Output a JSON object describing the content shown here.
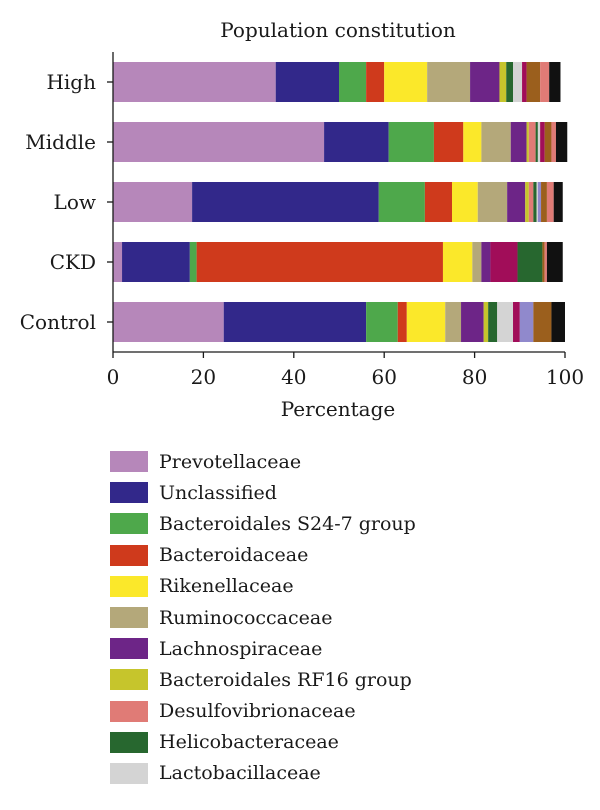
{
  "chart_data": {
    "type": "bar",
    "orientation": "horizontal",
    "stacked": true,
    "title": "Population constitution",
    "xlabel": "Percentage",
    "ylabel": "",
    "xlim": [
      0,
      100
    ],
    "xticks": [
      0,
      20,
      40,
      60,
      80,
      100
    ],
    "grid": false,
    "legend_position": "bottom",
    "categories": [
      "High",
      "Middle",
      "Low",
      "CKD",
      "Control"
    ],
    "series": [
      {
        "name": "Prevotellaceae",
        "color": "#b687ba",
        "values": [
          36,
          46.7,
          17.5,
          2,
          24.5
        ]
      },
      {
        "name": "Unclassified",
        "color": "#32288a",
        "values": [
          14,
          14.3,
          41.3,
          15,
          31.5
        ]
      },
      {
        "name": "Bacteroidales S24-7 group",
        "color": "#4ea84b",
        "values": [
          6,
          10,
          10.2,
          1.5,
          7
        ]
      },
      {
        "name": "Bacteroidaceae",
        "color": "#cf3a1c",
        "values": [
          4,
          6.5,
          6,
          54.5,
          2
        ]
      },
      {
        "name": "Rikenellaceae",
        "color": "#fbe82a",
        "values": [
          9.5,
          4,
          5.7,
          6.5,
          8.5
        ]
      },
      {
        "name": "Ruminococcaceae",
        "color": "#b4a87a",
        "values": [
          9.5,
          6.5,
          6.5,
          2,
          3.5
        ]
      },
      {
        "name": "Lachnospiraceae",
        "color": "#6d2587",
        "values": [
          6.5,
          3.5,
          4,
          2,
          5
        ]
      },
      {
        "name": "Bacteroidales RF16 group",
        "color": "#c6c52c",
        "values": [
          1.5,
          0.5,
          0.8,
          0,
          1
        ]
      },
      {
        "name": "Desulfovibrionaceae",
        "color": "#e07b76",
        "values": [
          0,
          1.5,
          1,
          0,
          0
        ]
      },
      {
        "name": "Helicobacteraceae",
        "color": "#27672f",
        "values": [
          1.5,
          0.5,
          0.7,
          0,
          2
        ]
      },
      {
        "name": "Lactobacillaceae",
        "color": "#d4d4d4",
        "values": [
          2,
          0.5,
          0.3,
          0,
          3.5
        ]
      }
    ],
    "other_segments": [
      [
        {
          "color": "#a10d59",
          "value": 1
        },
        {
          "color": "#9b5f1d",
          "value": 3
        },
        {
          "color": "#e07b76",
          "value": 2
        },
        {
          "color": "#111111",
          "value": 2.5
        }
      ],
      [
        {
          "color": "#a10d59",
          "value": 1
        },
        {
          "color": "#9b5f1d",
          "value": 1.5
        },
        {
          "color": "#e07b76",
          "value": 1
        },
        {
          "color": "#111111",
          "value": 2.5
        }
      ],
      [
        {
          "color": "#9089cc",
          "value": 0.7
        },
        {
          "color": "#9b5f1d",
          "value": 1.3
        },
        {
          "color": "#e07b76",
          "value": 1.5
        },
        {
          "color": "#111111",
          "value": 2
        }
      ],
      [
        {
          "color": "#a10d59",
          "value": 6
        },
        {
          "color": "#27672f",
          "value": 5.5
        },
        {
          "color": "#9b5f1d",
          "value": 0.5
        },
        {
          "color": "#e07b76",
          "value": 0.5
        },
        {
          "color": "#111111",
          "value": 3.5
        }
      ],
      [
        {
          "color": "#a10d59",
          "value": 1.5
        },
        {
          "color": "#9089cc",
          "value": 3
        },
        {
          "color": "#9b5f1d",
          "value": 4
        },
        {
          "color": "#111111",
          "value": 3
        }
      ]
    ]
  }
}
